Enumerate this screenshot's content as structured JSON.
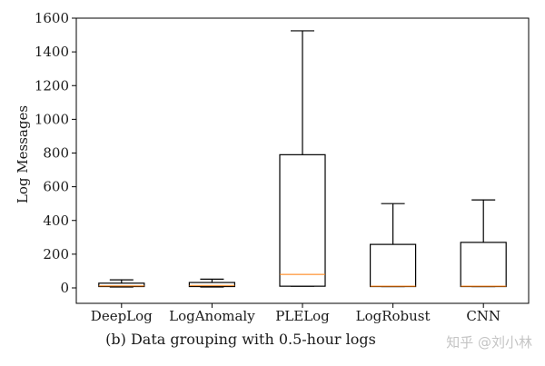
{
  "chart_data": {
    "type": "box",
    "title": "",
    "caption": "(b) Data grouping with 0.5-hour logs",
    "xlabel": "",
    "ylabel": "Log Messages",
    "ylim": [
      -50,
      1600
    ],
    "yticks": [
      0,
      200,
      400,
      600,
      800,
      1000,
      1200,
      1400,
      1600
    ],
    "grid": false,
    "legend": null,
    "categories": [
      "DeepLog",
      "LogAnomaly",
      "PLELog",
      "LogRobust",
      "CNN"
    ],
    "series": [
      {
        "name": "DeepLog",
        "whisker_low": 5,
        "q1": 8,
        "median": 12,
        "q3": 28,
        "whisker_high": 48
      },
      {
        "name": "LogAnomaly",
        "whisker_low": 5,
        "q1": 8,
        "median": 14,
        "q3": 32,
        "whisker_high": 52
      },
      {
        "name": "PLELog",
        "whisker_low": 10,
        "q1": 10,
        "median": 80,
        "q3": 790,
        "whisker_high": 1525
      },
      {
        "name": "LogRobust",
        "whisker_low": 8,
        "q1": 8,
        "median": 10,
        "q3": 258,
        "whisker_high": 500
      },
      {
        "name": "CNN",
        "whisker_low": 8,
        "q1": 8,
        "median": 10,
        "q3": 270,
        "whisker_high": 522
      }
    ],
    "colors": {
      "box": "#000000",
      "median": "#ff7f0e",
      "axis": "#000000"
    }
  },
  "figure": {
    "caption": "(b) Data grouping with 0.5-hour logs",
    "watermark": "知乎 @刘小林"
  }
}
